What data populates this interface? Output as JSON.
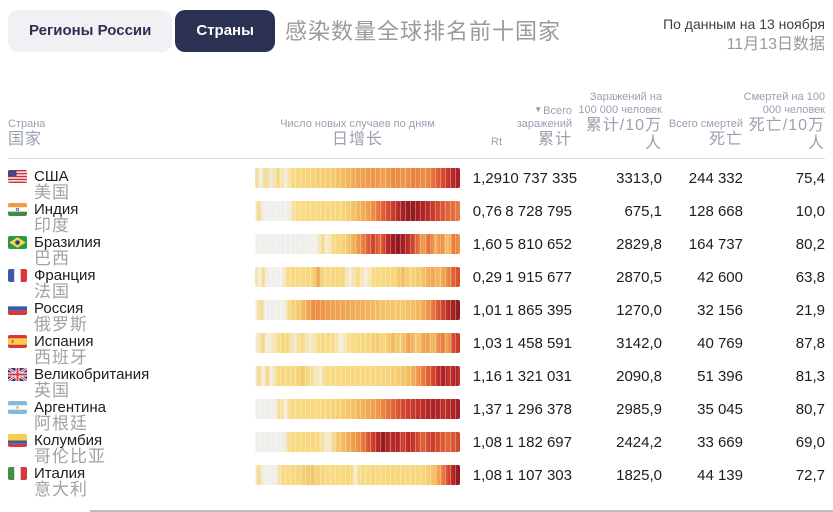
{
  "tabs": [
    {
      "label": "Регионы России",
      "active": false
    },
    {
      "label": "Страны",
      "active": true
    }
  ],
  "title": "感染数量全球排名前十国家",
  "date_note": {
    "ru": "По данным на 13 ноября",
    "zh": "11月13日数据"
  },
  "table": {
    "headers": {
      "country": {
        "ru": "Страна",
        "zh": "国家"
      },
      "daily": {
        "ru": "Число новых случаев по дням",
        "zh": "日增长"
      },
      "rt": {
        "ru": "Rt",
        "zh": ""
      },
      "total_cases": {
        "ru": "Всего заражений",
        "zh": "累计",
        "sort_icon": "▼"
      },
      "cases_per_100k": {
        "ru": "Заражений на 100 000 человек",
        "zh": "累计/10万人"
      },
      "total_deaths": {
        "ru": "Всего смертей",
        "zh": "死亡"
      },
      "deaths_per_100k": {
        "ru": "Смертей на 100 000 человек",
        "zh": "死亡/10万人"
      }
    },
    "rows": [
      {
        "flag": "us",
        "ru": "США",
        "zh": "美国",
        "rt": "1,29",
        "cases": "10 737 335",
        "cases100k": "3313,0",
        "deaths": "244 332",
        "deaths100k": "75,4",
        "heat": [
          [
            0,
            "#f4d47c"
          ],
          [
            3,
            "#f0eee9"
          ],
          [
            5,
            "#f6d77f"
          ],
          [
            8,
            "#f0eadc"
          ],
          [
            11,
            "#f7d881"
          ],
          [
            15,
            "#f1ecda"
          ],
          [
            18,
            "#f8d981"
          ],
          [
            28,
            "#f7d37a"
          ],
          [
            38,
            "#f5c96e"
          ],
          [
            46,
            "#f2b257"
          ],
          [
            52,
            "#efa150"
          ],
          [
            58,
            "#ee9649"
          ],
          [
            63,
            "#f0a452"
          ],
          [
            68,
            "#eb8843"
          ],
          [
            73,
            "#ee9a4c"
          ],
          [
            78,
            "#e97e3e"
          ],
          [
            83,
            "#ec9147"
          ],
          [
            88,
            "#e4683a"
          ],
          [
            92,
            "#d8492f"
          ],
          [
            96,
            "#bc2b2b"
          ],
          [
            100,
            "#a01f26"
          ]
        ]
      },
      {
        "flag": "in",
        "ru": "Индия",
        "zh": "印度",
        "rt": "0,76",
        "cases": "8 728 795",
        "cases100k": "675,1",
        "deaths": "128 668",
        "deaths100k": "10,0",
        "heat": [
          [
            0,
            "#f1efec"
          ],
          [
            2,
            "#f5d77e"
          ],
          [
            4,
            "#f1efec"
          ],
          [
            16,
            "#f1efeb"
          ],
          [
            20,
            "#f9dc85"
          ],
          [
            30,
            "#f8d981"
          ],
          [
            42,
            "#f8d87f"
          ],
          [
            50,
            "#f3bb60"
          ],
          [
            57,
            "#ee9449"
          ],
          [
            62,
            "#e2633a"
          ],
          [
            67,
            "#cb3e2c"
          ],
          [
            72,
            "#aa2127"
          ],
          [
            76,
            "#8f1b1f"
          ],
          [
            80,
            "#a62026"
          ],
          [
            84,
            "#b82929"
          ],
          [
            88,
            "#cf432d"
          ],
          [
            93,
            "#e0613a"
          ],
          [
            100,
            "#e87b40"
          ]
        ]
      },
      {
        "flag": "br",
        "ru": "Бразилия",
        "zh": "巴西",
        "rt": "1,60",
        "cases": "5 810 652",
        "cases100k": "2829,8",
        "deaths": "164 737",
        "deaths100k": "80,2",
        "heat": [
          [
            0,
            "#f1efec"
          ],
          [
            30,
            "#f0eeeb"
          ],
          [
            33,
            "#f7d983"
          ],
          [
            35,
            "#f3eedd"
          ],
          [
            38,
            "#f8da82"
          ],
          [
            44,
            "#f6d078"
          ],
          [
            48,
            "#f1af57"
          ],
          [
            52,
            "#ec8a44"
          ],
          [
            55,
            "#e0603a"
          ],
          [
            58,
            "#cd432e"
          ],
          [
            61,
            "#e4703c"
          ],
          [
            64,
            "#c33128"
          ],
          [
            67,
            "#9c1c21"
          ],
          [
            70,
            "#8f1b1f"
          ],
          [
            73,
            "#ad2127"
          ],
          [
            76,
            "#c53a2b"
          ],
          [
            79,
            "#e0673a"
          ],
          [
            82,
            "#efa351"
          ],
          [
            85,
            "#e4673b"
          ],
          [
            88,
            "#f2b35c"
          ],
          [
            91,
            "#ec8c46"
          ],
          [
            94,
            "#f5c76d"
          ],
          [
            97,
            "#e8773e"
          ],
          [
            100,
            "#ec9549"
          ]
        ]
      },
      {
        "flag": "fr",
        "ru": "Франция",
        "zh": "法国",
        "rt": "0,29",
        "cases": "1 915 677",
        "cases100k": "2870,5",
        "deaths": "42 600",
        "deaths100k": "63,8",
        "heat": [
          [
            0,
            "#f6d981"
          ],
          [
            2,
            "#f1efeb"
          ],
          [
            4,
            "#f7da82"
          ],
          [
            6,
            "#f1efeb"
          ],
          [
            13,
            "#f2f0ec"
          ],
          [
            16,
            "#f8db84"
          ],
          [
            28,
            "#f8d87f"
          ],
          [
            31,
            "#f0a551"
          ],
          [
            33,
            "#f8d881"
          ],
          [
            43,
            "#f7d77e"
          ],
          [
            46,
            "#f3eedb"
          ],
          [
            50,
            "#f8da82"
          ],
          [
            54,
            "#f3efe0"
          ],
          [
            58,
            "#f8d981"
          ],
          [
            68,
            "#f7d67d"
          ],
          [
            72,
            "#f3bd62"
          ],
          [
            76,
            "#f7d67e"
          ],
          [
            82,
            "#f4c368"
          ],
          [
            86,
            "#f0a451"
          ],
          [
            90,
            "#f3ba5e"
          ],
          [
            94,
            "#ec8c45"
          ],
          [
            97,
            "#e06036"
          ],
          [
            100,
            "#d84b30"
          ]
        ]
      },
      {
        "flag": "ru",
        "ru": "Россия",
        "zh": "俄罗斯",
        "rt": "1,01",
        "cases": "1 865 395",
        "cases100k": "1270,0",
        "deaths": "32 156",
        "deaths100k": "21,9",
        "heat": [
          [
            0,
            "#f1efec"
          ],
          [
            3,
            "#f4d77e"
          ],
          [
            5,
            "#f1efec"
          ],
          [
            14,
            "#f1efeb"
          ],
          [
            17,
            "#f7d77f"
          ],
          [
            21,
            "#f5cd73"
          ],
          [
            25,
            "#f1ad55"
          ],
          [
            29,
            "#ea8a43"
          ],
          [
            33,
            "#ed9549"
          ],
          [
            38,
            "#efa150"
          ],
          [
            45,
            "#f0a854"
          ],
          [
            55,
            "#f2b45c"
          ],
          [
            63,
            "#f4c369"
          ],
          [
            72,
            "#f5c96d"
          ],
          [
            80,
            "#f2b65e"
          ],
          [
            85,
            "#ec9048"
          ],
          [
            89,
            "#dd5b35"
          ],
          [
            93,
            "#c33a2b"
          ],
          [
            96,
            "#a8221f"
          ],
          [
            100,
            "#8c1a1e"
          ]
        ]
      },
      {
        "flag": "es",
        "ru": "Испания",
        "zh": "西班牙",
        "rt": "1,03",
        "cases": "1 458 591",
        "cases100k": "3142,0",
        "deaths": "40 769",
        "deaths100k": "87,8",
        "heat": [
          [
            0,
            "#f1efec"
          ],
          [
            4,
            "#f6d77e"
          ],
          [
            6,
            "#f1efec"
          ],
          [
            12,
            "#f8da84"
          ],
          [
            16,
            "#f6d67e"
          ],
          [
            19,
            "#f1e9cd"
          ],
          [
            23,
            "#f7d980"
          ],
          [
            27,
            "#f2ecd7"
          ],
          [
            31,
            "#f8da83"
          ],
          [
            38,
            "#f8db85"
          ],
          [
            42,
            "#f5efdc"
          ],
          [
            46,
            "#f9dc86"
          ],
          [
            54,
            "#f8d980"
          ],
          [
            59,
            "#f4cb70"
          ],
          [
            63,
            "#f7d77e"
          ],
          [
            67,
            "#f2b95f"
          ],
          [
            71,
            "#f6d27a"
          ],
          [
            75,
            "#efa04f"
          ],
          [
            79,
            "#f5cd72"
          ],
          [
            83,
            "#ee9a4c"
          ],
          [
            87,
            "#f3bd63"
          ],
          [
            91,
            "#e8773e"
          ],
          [
            94,
            "#f0a753"
          ],
          [
            97,
            "#d24530"
          ],
          [
            100,
            "#c63a2b"
          ]
        ]
      },
      {
        "flag": "gb",
        "ru": "Великобритания",
        "zh": "英国",
        "rt": "1,16",
        "cases": "1 321 031",
        "cases100k": "2090,8",
        "deaths": "51 396",
        "deaths100k": "81,3",
        "heat": [
          [
            0,
            "#f1efec"
          ],
          [
            2,
            "#f6d77f"
          ],
          [
            4,
            "#f1efec"
          ],
          [
            6,
            "#f5d67d"
          ],
          [
            8,
            "#f1efeb"
          ],
          [
            11,
            "#f7d980"
          ],
          [
            20,
            "#f8d981"
          ],
          [
            23,
            "#f4c76c"
          ],
          [
            26,
            "#f8da83"
          ],
          [
            32,
            "#f3ecd4"
          ],
          [
            34,
            "#f8da82"
          ],
          [
            48,
            "#f8d87f"
          ],
          [
            62,
            "#f7d67d"
          ],
          [
            70,
            "#f5cd72"
          ],
          [
            75,
            "#f3bd62"
          ],
          [
            79,
            "#ef9e4e"
          ],
          [
            83,
            "#e66f3c"
          ],
          [
            86,
            "#d8502f"
          ],
          [
            89,
            "#c23028"
          ],
          [
            92,
            "#aa2026"
          ],
          [
            95,
            "#c53a2b"
          ],
          [
            98,
            "#a82026"
          ],
          [
            100,
            "#c7392b"
          ]
        ]
      },
      {
        "flag": "ar",
        "ru": "Аргентина",
        "zh": "阿根廷",
        "rt": "1,37",
        "cases": "1 296 378",
        "cases100k": "2985,9",
        "deaths": "35 045",
        "deaths100k": "80,7",
        "heat": [
          [
            0,
            "#f1efec"
          ],
          [
            10,
            "#f0eeeb"
          ],
          [
            12,
            "#f8da83"
          ],
          [
            15,
            "#f3efe2"
          ],
          [
            17,
            "#f8da83"
          ],
          [
            21,
            "#f8d981"
          ],
          [
            33,
            "#f8d87f"
          ],
          [
            41,
            "#f6d077"
          ],
          [
            47,
            "#f4c368"
          ],
          [
            52,
            "#f2b55c"
          ],
          [
            56,
            "#f0a550"
          ],
          [
            60,
            "#ee9749"
          ],
          [
            64,
            "#e87a3e"
          ],
          [
            68,
            "#e06036"
          ],
          [
            72,
            "#d54b30"
          ],
          [
            76,
            "#ca3b2c"
          ],
          [
            80,
            "#c23128"
          ],
          [
            84,
            "#b52727"
          ],
          [
            88,
            "#a82026"
          ],
          [
            92,
            "#c0332a"
          ],
          [
            96,
            "#b02428"
          ],
          [
            100,
            "#9e1e23"
          ]
        ]
      },
      {
        "flag": "co",
        "ru": "Колумбия",
        "zh": "哥伦比亚",
        "rt": "1,08",
        "cases": "1 182 697",
        "cases100k": "2424,2",
        "deaths": "33 669",
        "deaths100k": "69,0",
        "heat": [
          [
            0,
            "#f1efec"
          ],
          [
            14,
            "#f0eeeb"
          ],
          [
            17,
            "#f8da82"
          ],
          [
            30,
            "#f8d87f"
          ],
          [
            36,
            "#f3ecd2"
          ],
          [
            39,
            "#f6d17a"
          ],
          [
            43,
            "#f3bb60"
          ],
          [
            47,
            "#f0a551"
          ],
          [
            51,
            "#ec8c45"
          ],
          [
            54,
            "#e2663a"
          ],
          [
            57,
            "#d14530"
          ],
          [
            60,
            "#b82828"
          ],
          [
            63,
            "#8f1a1e"
          ],
          [
            66,
            "#c0332a"
          ],
          [
            69,
            "#ab2026"
          ],
          [
            72,
            "#d14530"
          ],
          [
            75,
            "#b82727"
          ],
          [
            78,
            "#ca3e2c"
          ],
          [
            82,
            "#e0623a"
          ],
          [
            86,
            "#c53a2b"
          ],
          [
            90,
            "#d8502f"
          ],
          [
            94,
            "#e2673b"
          ],
          [
            100,
            "#ce432e"
          ]
        ]
      },
      {
        "flag": "it",
        "ru": "Италия",
        "zh": "意大利",
        "rt": "1,08",
        "cases": "1 107 303",
        "cases100k": "1825,0",
        "deaths": "44 139",
        "deaths100k": "72,7",
        "heat": [
          [
            0,
            "#f1efec"
          ],
          [
            2,
            "#f5d77e"
          ],
          [
            4,
            "#f1efec"
          ],
          [
            10,
            "#f1efeb"
          ],
          [
            13,
            "#f8db84"
          ],
          [
            20,
            "#f7d981"
          ],
          [
            24,
            "#f4cf78"
          ],
          [
            28,
            "#f1c66e"
          ],
          [
            31,
            "#f5d47b"
          ],
          [
            35,
            "#f8da82"
          ],
          [
            47,
            "#f8d980"
          ],
          [
            49,
            "#f4eedd"
          ],
          [
            51,
            "#f8da83"
          ],
          [
            65,
            "#f8d87f"
          ],
          [
            82,
            "#f7d67d"
          ],
          [
            87,
            "#f4c368"
          ],
          [
            90,
            "#ef9e4d"
          ],
          [
            93,
            "#e0603a"
          ],
          [
            96,
            "#c23028"
          ],
          [
            98,
            "#9c1b20"
          ],
          [
            100,
            "#8f1a1e"
          ]
        ]
      }
    ]
  },
  "colors": {
    "accent_navy": "#2b3153",
    "tab_inactive_bg": "#f1f1f4",
    "heat_low": "#f8d981",
    "heat_high": "#8f1a1e"
  }
}
